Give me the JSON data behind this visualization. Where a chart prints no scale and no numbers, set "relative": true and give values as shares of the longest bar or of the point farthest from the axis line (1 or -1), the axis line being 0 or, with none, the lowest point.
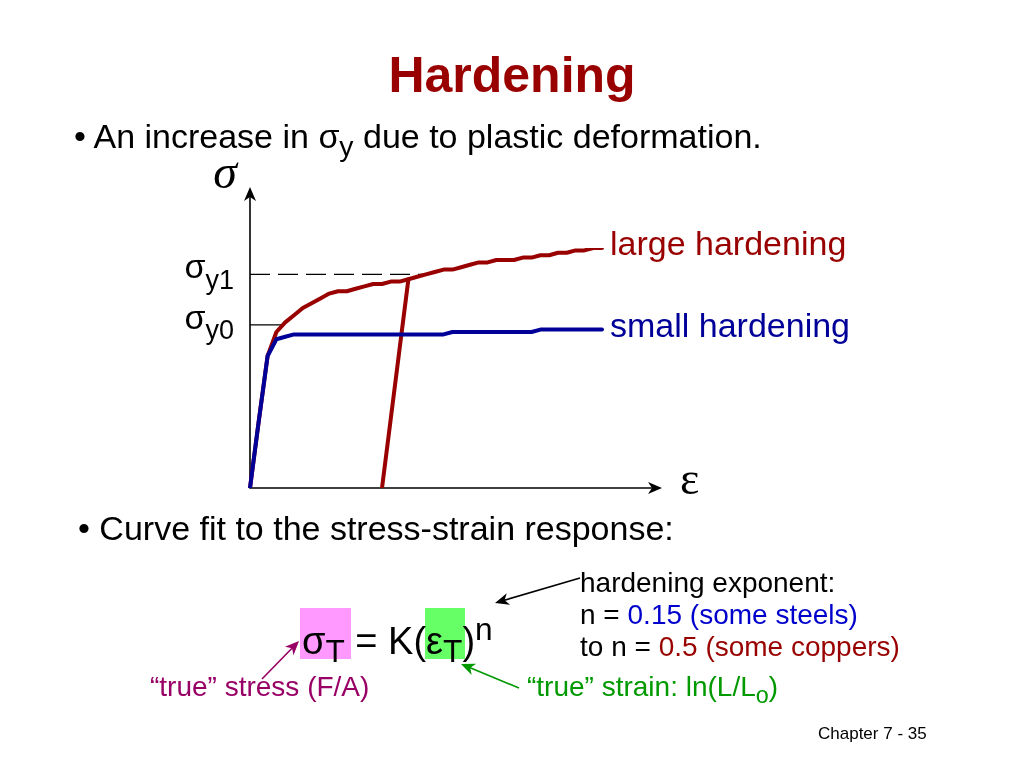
{
  "chart_data": {
    "type": "line",
    "title": "Hardening",
    "subtitle": "• An increase in σ$_{y}$ due to plastic deformation.",
    "xlabel": "ε",
    "ylabel": "σ",
    "relative": true,
    "marker": "none",
    "categories": [
      null,
      null,
      null,
      null,
      null,
      null,
      null,
      null,
      null,
      null,
      null,
      null,
      null,
      null,
      null,
      null,
      null,
      null,
      null,
      null,
      null,
      null,
      null,
      null,
      null,
      null,
      null,
      null,
      null,
      null,
      null,
      null,
      null,
      null,
      null,
      null,
      null,
      null,
      null,
      null,
      null
    ],
    "series": [
      {
        "name": "large hardening",
        "color": "#990000",
        "values": [
          0,
          0.28,
          0.55,
          0.65,
          0.69,
          0.72,
          0.75,
          0.77,
          0.79,
          0.81,
          0.82,
          0.82,
          0.83,
          0.84,
          0.85,
          0.85,
          0.86,
          0.86,
          0.87,
          0.88,
          0.89,
          0.9,
          0.91,
          0.91,
          0.92,
          0.93,
          0.94,
          0.94,
          0.95,
          0.95,
          0.95,
          0.96,
          0.96,
          0.97,
          0.97,
          0.98,
          0.98,
          0.99,
          0.99,
          1,
          1
        ]
      },
      {
        "color": "#990000",
        "values": [
          null,
          null,
          null,
          null,
          null,
          null,
          null,
          null,
          null,
          null,
          null,
          null,
          null,
          null,
          null,
          0,
          0.29,
          0.58,
          0.87,
          null,
          null,
          null,
          null,
          null,
          null,
          null,
          null,
          null,
          null,
          null,
          null,
          null,
          null,
          null,
          null,
          null,
          null,
          null,
          null,
          null,
          null
        ]
      },
      {
        "name": "small hardening",
        "color": "#000099",
        "values": [
          0,
          0.28,
          0.55,
          0.62,
          0.63,
          0.64,
          0.64,
          0.64,
          0.64,
          0.64,
          0.64,
          0.64,
          0.64,
          0.64,
          0.64,
          0.64,
          0.64,
          0.64,
          0.64,
          0.64,
          0.64,
          0.64,
          0.64,
          0.65,
          0.65,
          0.65,
          0.65,
          0.65,
          0.65,
          0.65,
          0.65,
          0.65,
          0.65,
          0.66,
          0.66,
          0.66,
          0.66,
          0.66,
          0.66,
          0.66,
          0.66
        ]
      }
    ],
    "ref_lines": [
      {
        "axis": "y",
        "value": 0.89,
        "label": "σ$_{y1}$",
        "line_style": "dashed",
        "color": "#000000"
      },
      {
        "axis": "y",
        "value": 0.68,
        "label": "σ$_{y0}$",
        "line_style": "solid",
        "color": "#000000"
      }
    ],
    "annotations": [
      "• Curve fit to the stress-strain response:",
      "σ$_{T}$ = K(ε$_{T}$)$^{n}$",
      "hardening exponent:",
      "n =",
      "0.15 (some steels)",
      "to n =",
      "0.5 (some coppers)",
      "“true” stress (F/A)",
      "“true” strain: ln(L/L$_{o}$)",
      "Chapter 7 - 35"
    ]
  }
}
